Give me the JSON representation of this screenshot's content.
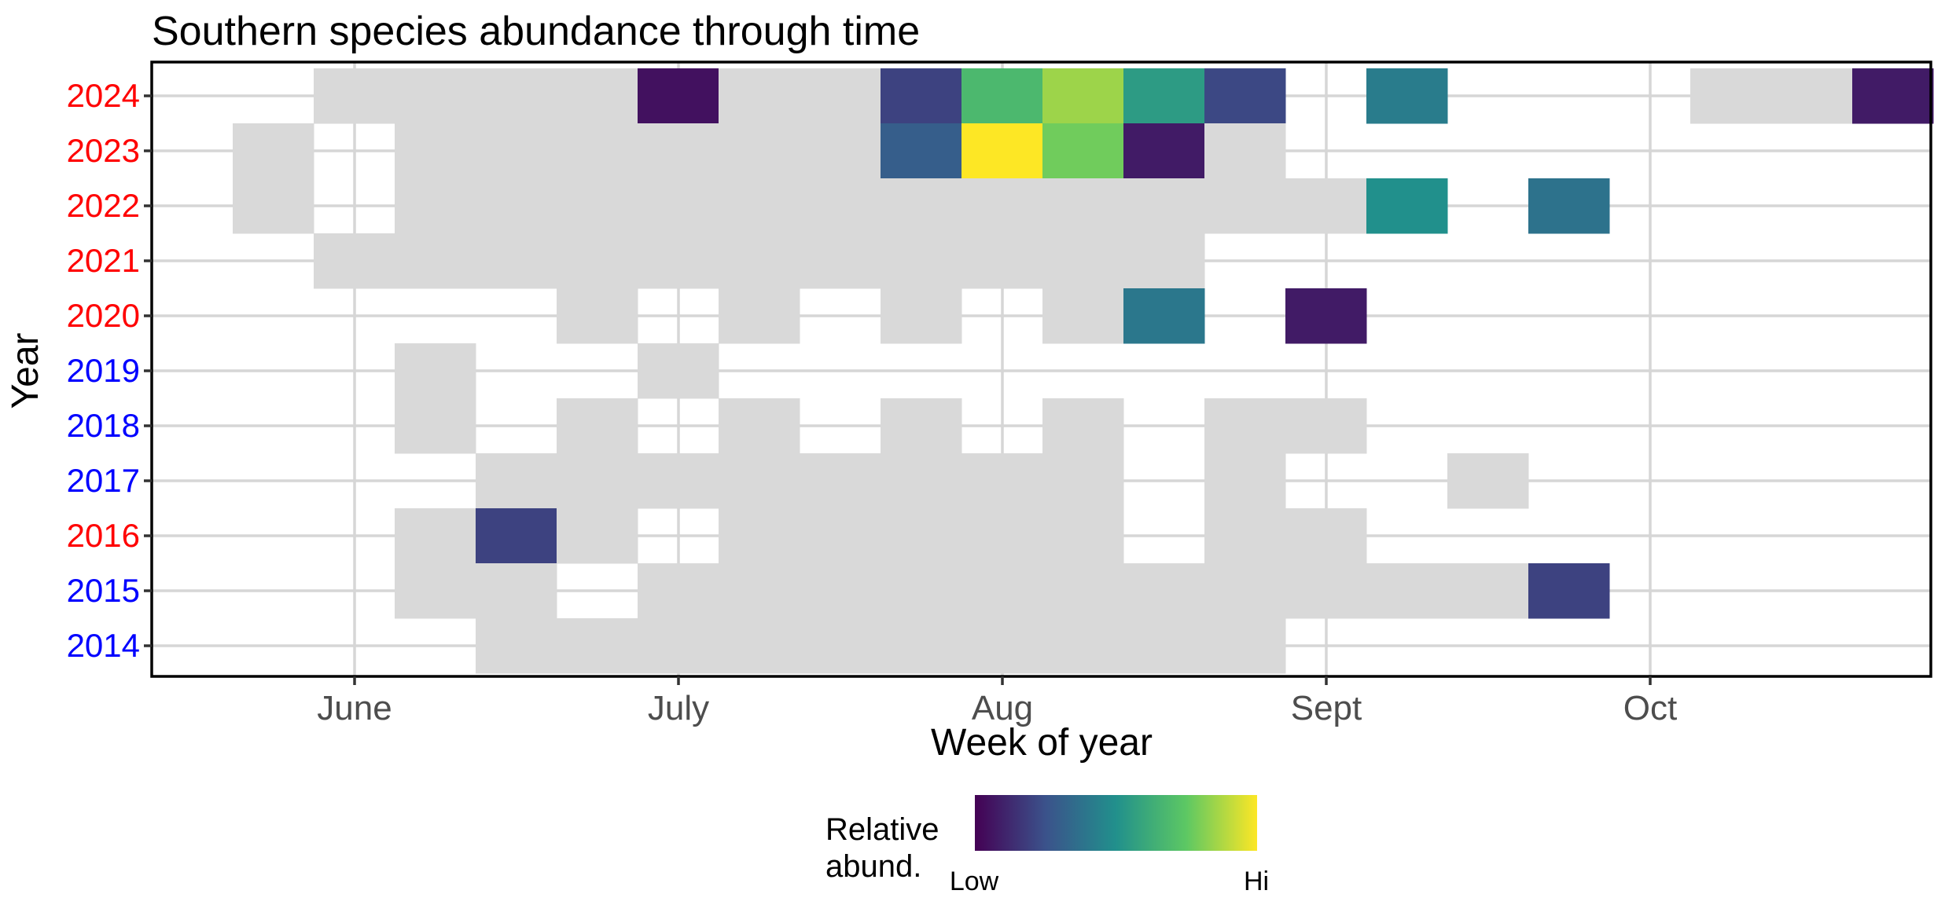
{
  "chart_data": {
    "type": "heatmap",
    "title": "Southern species abundance through time",
    "xlabel": "Week of year",
    "ylabel": "Year",
    "x_ticks": [
      "June",
      "July",
      "Aug",
      "Sept",
      "Oct"
    ],
    "years": [
      {
        "label": "2014",
        "color": "#0000ff"
      },
      {
        "label": "2015",
        "color": "#0000ff"
      },
      {
        "label": "2016",
        "color": "#ff0000"
      },
      {
        "label": "2017",
        "color": "#0000ff"
      },
      {
        "label": "2018",
        "color": "#0000ff"
      },
      {
        "label": "2019",
        "color": "#0000ff"
      },
      {
        "label": "2020",
        "color": "#ff0000"
      },
      {
        "label": "2021",
        "color": "#ff0000"
      },
      {
        "label": "2022",
        "color": "#ff0000"
      },
      {
        "label": "2023",
        "color": "#ff0000"
      },
      {
        "label": "2024",
        "color": "#ff0000"
      }
    ],
    "zero_color": "#d9d9d9",
    "colorscale": [
      "#440154",
      "#3b528b",
      "#21908c",
      "#5dc863",
      "#fde725"
    ],
    "cells": [
      {
        "year": "2024",
        "week": 3
      },
      {
        "year": "2024",
        "week": 4
      },
      {
        "year": "2024",
        "week": 5
      },
      {
        "year": "2024",
        "week": 6
      },
      {
        "year": "2024",
        "week": 7,
        "value": 0.05
      },
      {
        "year": "2024",
        "week": 8
      },
      {
        "year": "2024",
        "week": 9
      },
      {
        "year": "2024",
        "week": 10,
        "value": 0.2
      },
      {
        "year": "2024",
        "week": 11,
        "value": 0.68
      },
      {
        "year": "2024",
        "week": 12,
        "value": 0.85
      },
      {
        "year": "2024",
        "week": 13,
        "value": 0.55
      },
      {
        "year": "2024",
        "week": 14,
        "value": 0.22
      },
      {
        "year": "2024",
        "week": 16,
        "value": 0.42
      },
      {
        "year": "2024",
        "week": 20
      },
      {
        "year": "2024",
        "week": 21
      },
      {
        "year": "2024",
        "week": 22,
        "value": 0.08
      },
      {
        "year": "2023",
        "week": 2
      },
      {
        "year": "2023",
        "week": 4
      },
      {
        "year": "2023",
        "week": 5
      },
      {
        "year": "2023",
        "week": 6
      },
      {
        "year": "2023",
        "week": 7
      },
      {
        "year": "2023",
        "week": 8
      },
      {
        "year": "2023",
        "week": 9
      },
      {
        "year": "2023",
        "week": 10,
        "value": 0.3
      },
      {
        "year": "2023",
        "week": 11,
        "value": 1.0
      },
      {
        "year": "2023",
        "week": 12,
        "value": 0.78
      },
      {
        "year": "2023",
        "week": 13,
        "value": 0.08
      },
      {
        "year": "2023",
        "week": 14
      },
      {
        "year": "2022",
        "week": 2
      },
      {
        "year": "2022",
        "week": 4
      },
      {
        "year": "2022",
        "week": 5
      },
      {
        "year": "2022",
        "week": 6
      },
      {
        "year": "2022",
        "week": 7
      },
      {
        "year": "2022",
        "week": 8
      },
      {
        "year": "2022",
        "week": 9
      },
      {
        "year": "2022",
        "week": 10
      },
      {
        "year": "2022",
        "week": 11
      },
      {
        "year": "2022",
        "week": 12
      },
      {
        "year": "2022",
        "week": 13
      },
      {
        "year": "2022",
        "week": 14
      },
      {
        "year": "2022",
        "week": 15
      },
      {
        "year": "2022",
        "week": 16,
        "value": 0.5
      },
      {
        "year": "2022",
        "week": 18,
        "value": 0.38
      },
      {
        "year": "2021",
        "week": 3
      },
      {
        "year": "2021",
        "week": 4
      },
      {
        "year": "2021",
        "week": 5
      },
      {
        "year": "2021",
        "week": 6
      },
      {
        "year": "2021",
        "week": 7
      },
      {
        "year": "2021",
        "week": 8
      },
      {
        "year": "2021",
        "week": 9
      },
      {
        "year": "2021",
        "week": 10
      },
      {
        "year": "2021",
        "week": 11
      },
      {
        "year": "2021",
        "week": 12
      },
      {
        "year": "2021",
        "week": 13
      },
      {
        "year": "2020",
        "week": 6
      },
      {
        "year": "2020",
        "week": 8
      },
      {
        "year": "2020",
        "week": 10
      },
      {
        "year": "2020",
        "week": 12
      },
      {
        "year": "2020",
        "week": 13,
        "value": 0.4
      },
      {
        "year": "2020",
        "week": 15,
        "value": 0.08
      },
      {
        "year": "2019",
        "week": 4
      },
      {
        "year": "2019",
        "week": 7
      },
      {
        "year": "2018",
        "week": 4
      },
      {
        "year": "2018",
        "week": 6
      },
      {
        "year": "2018",
        "week": 8
      },
      {
        "year": "2018",
        "week": 10
      },
      {
        "year": "2018",
        "week": 12
      },
      {
        "year": "2018",
        "week": 14
      },
      {
        "year": "2018",
        "week": 15
      },
      {
        "year": "2017",
        "week": 5
      },
      {
        "year": "2017",
        "week": 6
      },
      {
        "year": "2017",
        "week": 7
      },
      {
        "year": "2017",
        "week": 8
      },
      {
        "year": "2017",
        "week": 9
      },
      {
        "year": "2017",
        "week": 10
      },
      {
        "year": "2017",
        "week": 11
      },
      {
        "year": "2017",
        "week": 12
      },
      {
        "year": "2017",
        "week": 14
      },
      {
        "year": "2017",
        "week": 17
      },
      {
        "year": "2016",
        "week": 4
      },
      {
        "year": "2016",
        "week": 5,
        "value": 0.2
      },
      {
        "year": "2016",
        "week": 6
      },
      {
        "year": "2016",
        "week": 8
      },
      {
        "year": "2016",
        "week": 9
      },
      {
        "year": "2016",
        "week": 10
      },
      {
        "year": "2016",
        "week": 11
      },
      {
        "year": "2016",
        "week": 12
      },
      {
        "year": "2016",
        "week": 14
      },
      {
        "year": "2016",
        "week": 15
      },
      {
        "year": "2015",
        "week": 4
      },
      {
        "year": "2015",
        "week": 5
      },
      {
        "year": "2015",
        "week": 7
      },
      {
        "year": "2015",
        "week": 8
      },
      {
        "year": "2015",
        "week": 9
      },
      {
        "year": "2015",
        "week": 10
      },
      {
        "year": "2015",
        "week": 11
      },
      {
        "year": "2015",
        "week": 12
      },
      {
        "year": "2015",
        "week": 13
      },
      {
        "year": "2015",
        "week": 14
      },
      {
        "year": "2015",
        "week": 15
      },
      {
        "year": "2015",
        "week": 16
      },
      {
        "year": "2015",
        "week": 17
      },
      {
        "year": "2015",
        "week": 18,
        "value": 0.2
      },
      {
        "year": "2014",
        "week": 5
      },
      {
        "year": "2014",
        "week": 6
      },
      {
        "year": "2014",
        "week": 7
      },
      {
        "year": "2014",
        "week": 8
      },
      {
        "year": "2014",
        "week": 9
      },
      {
        "year": "2014",
        "week": 10
      },
      {
        "year": "2014",
        "week": 11
      },
      {
        "year": "2014",
        "week": 12
      },
      {
        "year": "2014",
        "week": 13
      },
      {
        "year": "2014",
        "week": 14
      }
    ],
    "legend": {
      "title_line1": "Relative",
      "title_line2": "abund.",
      "low_label": "Low",
      "high_label": "Hi",
      "position": "bottom"
    }
  }
}
